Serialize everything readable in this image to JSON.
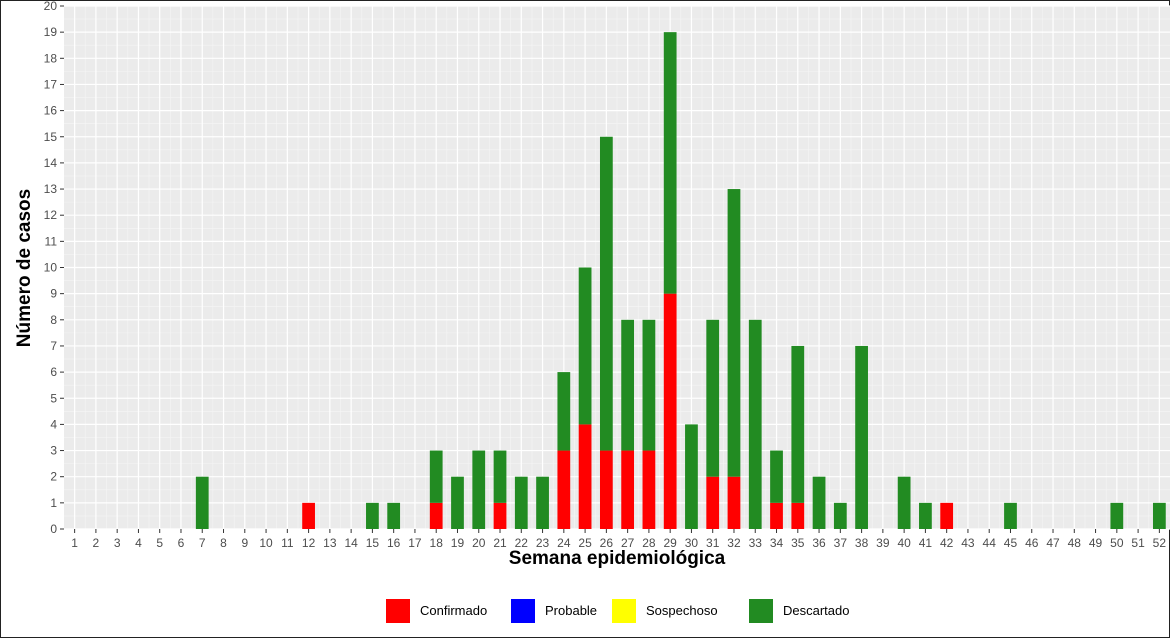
{
  "chart_data": {
    "type": "bar",
    "stacked": true,
    "title": "",
    "xlabel": "Semana epidemiológica",
    "ylabel": "Número de casos",
    "ylim": [
      0,
      20
    ],
    "yticks": [
      0,
      1,
      2,
      3,
      4,
      5,
      6,
      7,
      8,
      9,
      10,
      11,
      12,
      13,
      14,
      15,
      16,
      17,
      18,
      19,
      20
    ],
    "grid": true,
    "legend_position": "bottom",
    "categories": [
      "1",
      "2",
      "3",
      "4",
      "5",
      "6",
      "7",
      "8",
      "9",
      "10",
      "11",
      "12",
      "13",
      "14",
      "15",
      "16",
      "17",
      "18",
      "19",
      "20",
      "21",
      "22",
      "23",
      "24",
      "25",
      "26",
      "27",
      "28",
      "29",
      "30",
      "31",
      "32",
      "33",
      "34",
      "35",
      "36",
      "37",
      "38",
      "39",
      "40",
      "41",
      "42",
      "43",
      "44",
      "45",
      "46",
      "47",
      "48",
      "49",
      "50",
      "51",
      "52"
    ],
    "series": [
      {
        "name": "Confirmado",
        "color": "#ff0000",
        "values": [
          0,
          0,
          0,
          0,
          0,
          0,
          0,
          0,
          0,
          0,
          0,
          1,
          0,
          0,
          0,
          0,
          0,
          1,
          0,
          0,
          1,
          0,
          0,
          3,
          4,
          3,
          3,
          3,
          9,
          0,
          2,
          2,
          0,
          1,
          1,
          0,
          0,
          0,
          0,
          0,
          0,
          1,
          0,
          0,
          0,
          0,
          0,
          0,
          0,
          0,
          0,
          0
        ]
      },
      {
        "name": "Probable",
        "color": "#0000ff",
        "values": [
          0,
          0,
          0,
          0,
          0,
          0,
          0,
          0,
          0,
          0,
          0,
          0,
          0,
          0,
          0,
          0,
          0,
          0,
          0,
          0,
          0,
          0,
          0,
          0,
          0,
          0,
          0,
          0,
          0,
          0,
          0,
          0,
          0,
          0,
          0,
          0,
          0,
          0,
          0,
          0,
          0,
          0,
          0,
          0,
          0,
          0,
          0,
          0,
          0,
          0,
          0,
          0
        ]
      },
      {
        "name": "Sospechoso",
        "color": "#ffff00",
        "values": [
          0,
          0,
          0,
          0,
          0,
          0,
          0,
          0,
          0,
          0,
          0,
          0,
          0,
          0,
          0,
          0,
          0,
          0,
          0,
          0,
          0,
          0,
          0,
          0,
          0,
          0,
          0,
          0,
          0,
          0,
          0,
          0,
          0,
          0,
          0,
          0,
          0,
          0,
          0,
          0,
          0,
          0,
          0,
          0,
          0,
          0,
          0,
          0,
          0,
          0,
          0,
          0
        ]
      },
      {
        "name": "Descartado",
        "color": "#228b22",
        "values": [
          0,
          0,
          0,
          0,
          0,
          0,
          2,
          0,
          0,
          0,
          0,
          0,
          0,
          0,
          1,
          1,
          0,
          2,
          2,
          3,
          2,
          2,
          2,
          3,
          6,
          12,
          5,
          5,
          10,
          4,
          6,
          11,
          8,
          2,
          6,
          2,
          1,
          7,
          0,
          2,
          1,
          0,
          0,
          0,
          1,
          0,
          0,
          0,
          0,
          1,
          0,
          1
        ]
      }
    ]
  },
  "colors": {
    "panel_background": "#ebebeb",
    "grid_major": "#ffffff",
    "grid_minor": "#f5f5f5"
  }
}
